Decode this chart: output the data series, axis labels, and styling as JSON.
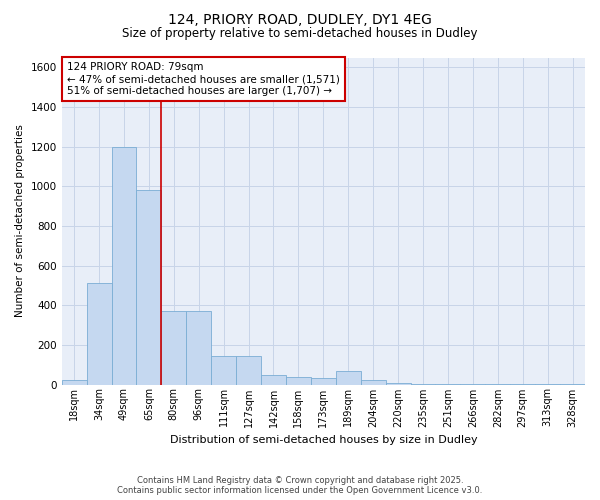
{
  "title_line1": "124, PRIORY ROAD, DUDLEY, DY1 4EG",
  "title_line2": "Size of property relative to semi-detached houses in Dudley",
  "xlabel": "Distribution of semi-detached houses by size in Dudley",
  "ylabel": "Number of semi-detached properties",
  "categories": [
    "18sqm",
    "34sqm",
    "49sqm",
    "65sqm",
    "80sqm",
    "96sqm",
    "111sqm",
    "127sqm",
    "142sqm",
    "158sqm",
    "173sqm",
    "189sqm",
    "204sqm",
    "220sqm",
    "235sqm",
    "251sqm",
    "266sqm",
    "282sqm",
    "297sqm",
    "313sqm",
    "328sqm"
  ],
  "values": [
    25,
    510,
    1200,
    980,
    370,
    370,
    145,
    145,
    50,
    40,
    35,
    70,
    25,
    10,
    5,
    5,
    5,
    5,
    5,
    5,
    5
  ],
  "bar_color": "#c5d8f0",
  "bar_edgecolor": "#7aadd4",
  "grid_color": "#c8d4e8",
  "background_color": "#e8eef8",
  "vline_color": "#cc0000",
  "annotation_text": "124 PRIORY ROAD: 79sqm\n← 47% of semi-detached houses are smaller (1,571)\n51% of semi-detached houses are larger (1,707) →",
  "annotation_box_color": "#cc0000",
  "footer_line1": "Contains HM Land Registry data © Crown copyright and database right 2025.",
  "footer_line2": "Contains public sector information licensed under the Open Government Licence v3.0.",
  "ylim": [
    0,
    1650
  ],
  "yticks": [
    0,
    200,
    400,
    600,
    800,
    1000,
    1200,
    1400,
    1600
  ],
  "figsize": [
    6.0,
    5.0
  ],
  "dpi": 100
}
